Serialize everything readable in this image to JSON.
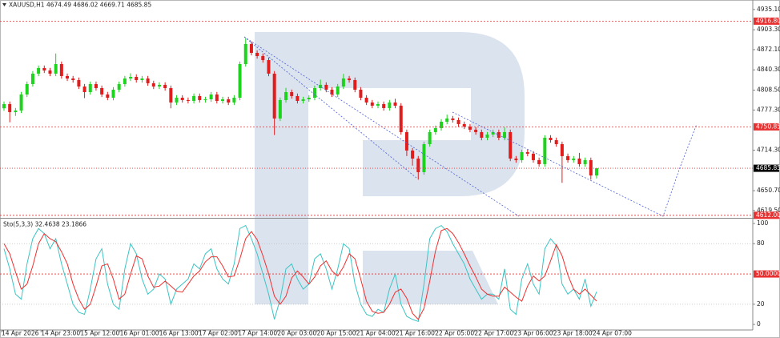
{
  "chart_data": {
    "type": "candlestick",
    "symbol": "XAUUSD,H1",
    "open": [
      4780.0,
      4786.6,
      4774.0,
      4776.5,
      4801.7,
      4818.0,
      4834.4,
      4843.2,
      4839.4,
      4834.4,
      4849.4,
      4830.6,
      4826.8,
      4824.3,
      4814.2,
      4805.4,
      4818.0,
      4811.7,
      4801.7,
      4796.6,
      4809.2,
      4818.0,
      4826.8,
      4829.3,
      4824.3,
      4826.8,
      4819.3,
      4814.2,
      4816.8,
      4811.7,
      4789.1,
      4796.6,
      4792.9,
      4791.6,
      4799.2,
      4792.9,
      4794.1,
      4801.7,
      4791.6,
      4794.1,
      4789.1,
      4796.6,
      4849.4,
      4880.9,
      4867.0,
      4862.0,
      4855.7,
      4834.4,
      4764.0,
      4792.9,
      4805.4,
      4799.2,
      4791.6,
      4794.1,
      4796.6,
      4811.7,
      4816.8,
      4809.2,
      4801.7,
      4814.2,
      4826.8,
      4824.3,
      4809.2,
      4796.6,
      4789.1,
      4784.1,
      4786.6,
      4780.3,
      4789.1,
      4784.1,
      4742.6,
      4713.7,
      4701.1,
      4679.7,
      4723.7,
      4742.6,
      4748.9,
      4758.9,
      4764.0,
      4761.5,
      4755.2,
      4751.4,
      4746.4,
      4742.6,
      4733.8,
      4738.8,
      4742.6,
      4733.8,
      4742.6,
      4701.1,
      4698.6,
      4711.2,
      4708.7,
      4698.6,
      4692.3,
      4733.8,
      4730.0,
      4723.7,
      4704.9,
      4698.6,
      4701.1,
      4692.3,
      4698.6,
      4674.49
    ],
    "high": [
      4790.6,
      4790.6,
      4780.5,
      4805.7,
      4822.0,
      4838.4,
      4847.2,
      4847.2,
      4843.4,
      4866.0,
      4853.4,
      4834.6,
      4830.8,
      4828.3,
      4818.2,
      4822.0,
      4822.0,
      4815.7,
      4805.7,
      4813.2,
      4822.0,
      4830.8,
      4835.0,
      4833.3,
      4830.8,
      4830.8,
      4823.3,
      4820.8,
      4820.8,
      4815.7,
      4800.6,
      4800.6,
      4796.9,
      4803.2,
      4803.2,
      4798.1,
      4805.7,
      4805.7,
      4798.1,
      4798.1,
      4800.6,
      4853.4,
      4890.0,
      4884.9,
      4871.0,
      4866.0,
      4859.7,
      4838.4,
      4796.9,
      4812.0,
      4809.4,
      4803.2,
      4798.1,
      4800.6,
      4815.7,
      4825.0,
      4820.8,
      4813.2,
      4818.2,
      4834.0,
      4830.8,
      4828.3,
      4813.2,
      4800.6,
      4793.1,
      4790.6,
      4790.6,
      4793.1,
      4795.0,
      4788.1,
      4746.6,
      4717.7,
      4705.1,
      4727.7,
      4746.6,
      4752.9,
      4762.9,
      4770.0,
      4768.0,
      4765.5,
      4759.2,
      4755.4,
      4750.4,
      4746.6,
      4742.8,
      4746.6,
      4746.6,
      4750.0,
      4746.6,
      4705.1,
      4715.2,
      4715.2,
      4712.7,
      4702.6,
      4737.8,
      4737.8,
      4734.0,
      4727.7,
      4708.9,
      4705.1,
      4710.0,
      4702.6,
      4702.6,
      4686.02
    ],
    "low": [
      4776.0,
      4758.0,
      4768.0,
      4772.5,
      4797.7,
      4814.0,
      4830.4,
      4835.4,
      4830.4,
      4830.4,
      4826.6,
      4822.8,
      4820.3,
      4810.2,
      4796.0,
      4801.4,
      4807.7,
      4797.7,
      4792.6,
      4792.6,
      4805.2,
      4814.0,
      4822.8,
      4820.3,
      4820.3,
      4815.3,
      4810.2,
      4810.2,
      4807.7,
      4780.0,
      4785.1,
      4788.9,
      4787.6,
      4787.6,
      4788.9,
      4788.9,
      4790.1,
      4787.6,
      4787.6,
      4785.1,
      4785.1,
      4792.6,
      4845.4,
      4863.0,
      4858.0,
      4851.7,
      4830.4,
      4738.0,
      4760.0,
      4788.9,
      4795.2,
      4787.6,
      4787.6,
      4790.1,
      4792.6,
      4807.7,
      4805.2,
      4797.7,
      4797.7,
      4810.2,
      4820.3,
      4805.2,
      4792.6,
      4785.1,
      4780.1,
      4780.1,
      4776.3,
      4776.3,
      4780.1,
      4738.6,
      4705.0,
      4690.0,
      4668.0,
      4675.7,
      4719.7,
      4738.6,
      4744.9,
      4754.9,
      4757.5,
      4751.2,
      4747.4,
      4742.4,
      4738.6,
      4729.8,
      4729.8,
      4734.8,
      4729.8,
      4729.8,
      4697.1,
      4694.6,
      4694.6,
      4704.7,
      4694.6,
      4688.3,
      4688.3,
      4726.0,
      4719.7,
      4663.0,
      4694.6,
      4694.6,
      4688.3,
      4688.3,
      4668.0,
      4669.71
    ],
    "close": [
      4786.6,
      4774.0,
      4776.5,
      4801.7,
      4818.0,
      4834.4,
      4843.2,
      4839.4,
      4834.4,
      4849.4,
      4830.6,
      4826.8,
      4824.3,
      4814.2,
      4805.4,
      4818.0,
      4811.7,
      4801.7,
      4796.6,
      4809.2,
      4818.0,
      4826.8,
      4829.3,
      4824.3,
      4826.8,
      4819.3,
      4814.2,
      4816.8,
      4811.7,
      4789.1,
      4796.6,
      4792.9,
      4791.6,
      4799.2,
      4792.9,
      4794.1,
      4801.7,
      4791.6,
      4794.1,
      4789.1,
      4796.6,
      4849.4,
      4880.9,
      4867.0,
      4862.0,
      4855.7,
      4834.4,
      4764.0,
      4792.9,
      4805.4,
      4799.2,
      4791.6,
      4794.1,
      4796.6,
      4811.7,
      4816.8,
      4809.2,
      4801.7,
      4814.2,
      4826.8,
      4824.3,
      4809.2,
      4796.6,
      4789.1,
      4784.1,
      4786.6,
      4780.3,
      4789.1,
      4784.1,
      4742.6,
      4713.7,
      4701.1,
      4679.7,
      4723.7,
      4742.6,
      4748.9,
      4758.9,
      4764.0,
      4761.5,
      4755.2,
      4751.4,
      4746.4,
      4742.6,
      4733.8,
      4738.8,
      4742.6,
      4733.8,
      4742.6,
      4701.1,
      4698.6,
      4711.2,
      4708.7,
      4698.6,
      4692.3,
      4733.8,
      4730.0,
      4723.7,
      4704.9,
      4698.6,
      4701.1,
      4692.3,
      4698.6,
      4674.5,
      4685.85
    ],
    "up_color": "#1ed31e",
    "down_color": "#e01c1c",
    "ylim": [
      4608,
      4950
    ],
    "yticks": [
      {
        "value": 4935.1,
        "label": "4935.10"
      },
      {
        "value": 4903.3,
        "label": "4903.30"
      },
      {
        "value": 4872.1,
        "label": "4872.10"
      },
      {
        "value": 4840.3,
        "label": "4840.30"
      },
      {
        "value": 4808.5,
        "label": "4808.50"
      },
      {
        "value": 4777.3,
        "label": "4777.30"
      },
      {
        "value": 4714.3,
        "label": "4714.30"
      },
      {
        "value": 4650.7,
        "label": "4650.70"
      },
      {
        "value": 4619.5,
        "label": "4619.50"
      }
    ],
    "levels": [
      {
        "value": 4916.8,
        "label": "4916.80"
      },
      {
        "value": 4750.85,
        "label": "4750.85"
      },
      {
        "value": 4612,
        "label": "4612.00"
      }
    ],
    "level_color": "#e83030",
    "xtick_labels": [
      "14 Apr 2026",
      "14 Apr 23:00",
      "15 Apr 12:00",
      "16 Apr 01:00",
      "16 Apr 13:00",
      "17 Apr 02:00",
      "17 Apr 14:00",
      "20 Apr 03:00",
      "20 Apr 15:00",
      "21 Apr 04:00",
      "21 Apr 16:00",
      "22 Apr 05:00",
      "22 Apr 17:00",
      "23 Apr 06:00",
      "23 Apr 18:00",
      "24 Apr 07:00"
    ],
    "indicator": {
      "type": "line",
      "title": "Sto(5,3,3)",
      "ylim": [
        -5.5,
        104
      ],
      "yticks": [
        100,
        80,
        20,
        0
      ],
      "levels": [
        {
          "value": 50,
          "label": "50.0000"
        }
      ],
      "series": [
        {
          "color": "#3cc4c4",
          "values": [
            75,
            55,
            30,
            25,
            60,
            85,
            95,
            90,
            75,
            85,
            60,
            40,
            20,
            12,
            10,
            35,
            65,
            75,
            40,
            20,
            15,
            55,
            80,
            70,
            45,
            30,
            35,
            50,
            45,
            20,
            35,
            40,
            45,
            60,
            55,
            70,
            75,
            55,
            45,
            40,
            60,
            95,
            98,
            85,
            70,
            50,
            30,
            5,
            25,
            55,
            60,
            45,
            35,
            40,
            65,
            70,
            55,
            35,
            55,
            80,
            75,
            40,
            20,
            10,
            8,
            15,
            12,
            35,
            50,
            20,
            8,
            5,
            3,
            40,
            85,
            95,
            98,
            92,
            80,
            70,
            60,
            45,
            35,
            25,
            30,
            30,
            25,
            55,
            15,
            10,
            45,
            60,
            40,
            30,
            75,
            85,
            78,
            40,
            30,
            35,
            25,
            45,
            18,
            32.4638
          ]
        },
        {
          "color": "#f03030",
          "values": [
            80,
            70,
            52,
            35,
            40,
            58,
            80,
            90,
            85,
            82,
            72,
            60,
            40,
            25,
            15,
            20,
            38,
            58,
            60,
            45,
            25,
            30,
            50,
            68,
            65,
            48,
            37,
            38,
            43,
            38,
            33,
            32,
            40,
            48,
            53,
            62,
            67,
            67,
            58,
            47,
            48,
            65,
            85,
            92,
            84,
            68,
            50,
            28,
            20,
            28,
            46,
            53,
            47,
            40,
            47,
            58,
            63,
            53,
            48,
            57,
            70,
            65,
            45,
            23,
            13,
            11,
            12,
            20,
            32,
            35,
            26,
            11,
            5,
            16,
            43,
            73,
            93,
            95,
            90,
            81,
            70,
            58,
            47,
            35,
            30,
            28,
            28,
            37,
            32,
            27,
            23,
            38,
            48,
            43,
            48,
            63,
            79,
            68,
            49,
            35,
            30,
            35,
            29,
            23.1866
          ]
        }
      ]
    }
  }
}
